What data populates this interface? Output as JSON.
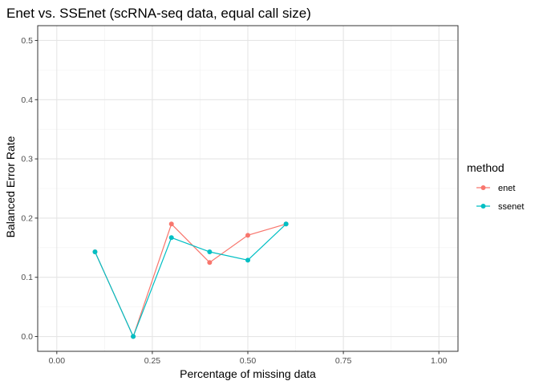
{
  "chart_data": {
    "type": "line",
    "title": "Enet vs. SSEnet (scRNA-seq data, equal call size)",
    "xlabel": "Percentage of missing data",
    "ylabel": "Balanced Error Rate",
    "xlim": [
      -0.05,
      1.05
    ],
    "ylim": [
      -0.025,
      0.525
    ],
    "x_ticks": [
      0,
      0.25,
      0.5,
      0.75,
      1
    ],
    "x_tick_labels": [
      "0.00",
      "0.25",
      "0.50",
      "0.75",
      "1.00"
    ],
    "y_ticks": [
      0,
      0.1,
      0.2,
      0.3,
      0.4,
      0.5
    ],
    "y_tick_labels": [
      "0.0",
      "0.1",
      "0.2",
      "0.3",
      "0.4",
      "0.5"
    ],
    "grid": true,
    "legend_title": "method",
    "legend_position": "right",
    "series": [
      {
        "name": "enet",
        "color": "#F8766D",
        "x": [
          0.1,
          0.2,
          0.3,
          0.4,
          0.5,
          0.6
        ],
        "y": [
          0.143,
          0.0,
          0.19,
          0.125,
          0.171,
          0.19
        ]
      },
      {
        "name": "ssenet",
        "color": "#00BFC4",
        "x": [
          0.1,
          0.2,
          0.3,
          0.4,
          0.5,
          0.6
        ],
        "y": [
          0.143,
          0.0,
          0.167,
          0.143,
          0.129,
          0.19
        ]
      }
    ]
  }
}
